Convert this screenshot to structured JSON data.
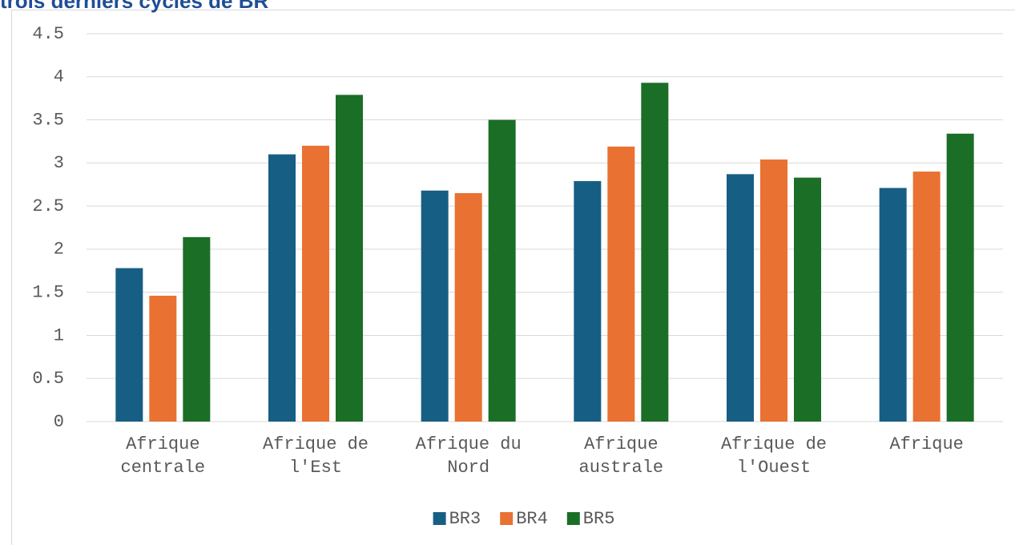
{
  "chart_data": {
    "type": "bar",
    "title": "trois derniers cycles de BR",
    "categories": [
      "Afrique centrale",
      "Afrique de l'Est",
      "Afrique du Nord",
      "Afrique australe",
      "Afrique de l'Ouest",
      "Afrique"
    ],
    "series": [
      {
        "name": "BR3",
        "color": "#175e84",
        "values": [
          1.78,
          3.1,
          2.68,
          2.79,
          2.87,
          2.71
        ]
      },
      {
        "name": "BR4",
        "color": "#e97132",
        "values": [
          1.46,
          3.2,
          2.65,
          3.19,
          3.04,
          2.9
        ]
      },
      {
        "name": "BR5",
        "color": "#1b6e26",
        "values": [
          2.14,
          3.79,
          3.5,
          3.93,
          2.83,
          3.34
        ]
      }
    ],
    "ylim": [
      0,
      4.5
    ],
    "yticks": [
      0,
      0.5,
      1,
      1.5,
      2,
      2.5,
      3,
      3.5,
      4,
      4.5
    ],
    "grid": true,
    "legend": "bottom"
  }
}
